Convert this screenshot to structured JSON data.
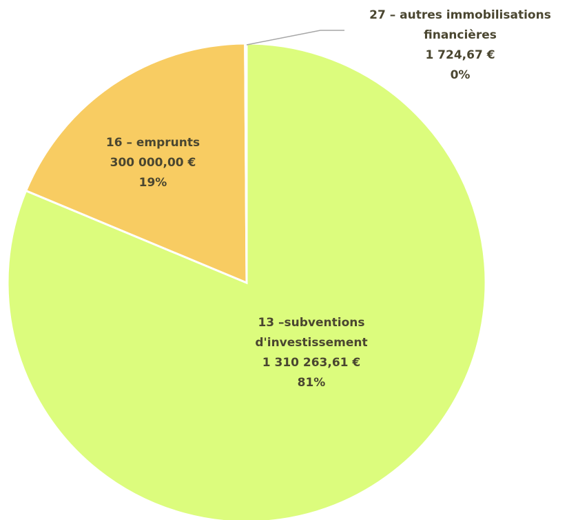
{
  "chart_data": {
    "type": "pie",
    "categories": [
      "13 –subventions d'investissement",
      "16 – emprunts",
      "27 – autres immobilisations financières"
    ],
    "values": [
      1310263.61,
      300000.0,
      1724.67
    ],
    "value_labels": [
      "1 310 263,61 €",
      "300 000,00 €",
      "1 724,67 €"
    ],
    "percent_labels": [
      "81%",
      "19%",
      "0%"
    ],
    "colors": [
      "#dcfc7d",
      "#f8cc62",
      "#f2e27a"
    ]
  }
}
